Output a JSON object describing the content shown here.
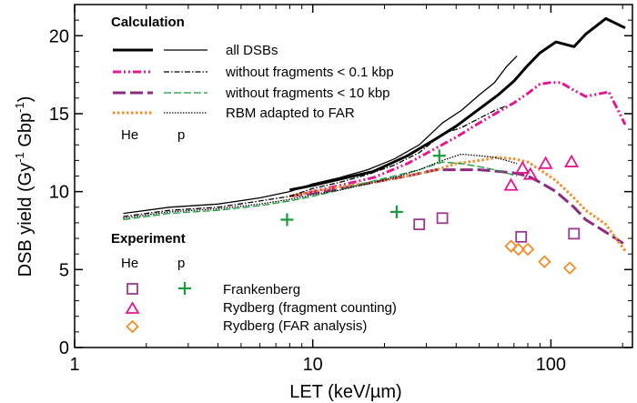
{
  "chart_data": {
    "type": "line",
    "xscale": "log",
    "xlim": [
      1,
      220
    ],
    "ylim": [
      0,
      22
    ],
    "xlabel": "LET (keV/µm)",
    "ylabel_parts": [
      "DSB yield (Gy",
      "-1",
      " Gbp",
      "-1",
      ")"
    ],
    "x_ticks": [
      1,
      10,
      100
    ],
    "x_tick_labels": [
      "1",
      "10",
      "100"
    ],
    "y_ticks": [
      0,
      5,
      10,
      15,
      20
    ],
    "y_tick_labels": [
      "0",
      "5",
      "10",
      "15",
      "20"
    ],
    "legend": {
      "calculation_title": "Calculation",
      "experiment_title": "Experiment",
      "col_he": "He",
      "col_p": "p",
      "calc_entries": [
        "all DSBs",
        "without fragments < 0.1 kbp",
        "without fragments < 10  kbp",
        "RBM adapted to FAR"
      ],
      "exp_entries": [
        "Frankenberg",
        "Rydberg (fragment counting)",
        "Rydberg (FAR analysis)"
      ]
    },
    "series": [
      {
        "particle": "He",
        "group": "all DSBs",
        "color": "#000000",
        "x": [
          8,
          10,
          13,
          18,
          25,
          33,
          40,
          50,
          60,
          70,
          80,
          90,
          105,
          125,
          140,
          170,
          205
        ],
        "y": [
          10.1,
          10.4,
          10.8,
          11.3,
          12.3,
          13.4,
          14.2,
          15.3,
          16.2,
          17.1,
          18.1,
          18.9,
          19.6,
          19.3,
          20.1,
          21.1,
          20.5
        ]
      },
      {
        "particle": "He",
        "group": "without fragments < 0.1 kbp",
        "color": "#e0198f",
        "x": [
          8,
          10,
          13,
          18,
          25,
          33,
          40,
          50,
          60,
          70,
          80,
          90,
          100,
          110,
          125,
          140,
          175,
          205
        ],
        "y": [
          9.7,
          10.0,
          10.4,
          10.9,
          11.8,
          12.8,
          13.5,
          14.4,
          15.1,
          15.7,
          16.3,
          16.9,
          17.0,
          17.0,
          16.5,
          16.1,
          16.4,
          14.3
        ]
      },
      {
        "particle": "He",
        "group": "without fragments < 10 kbp",
        "color": "#8b2a7f",
        "x": [
          8,
          10,
          13,
          18,
          25,
          33,
          40,
          50,
          60,
          70,
          80,
          90,
          105,
          125,
          140,
          170,
          205
        ],
        "y": [
          9.7,
          9.9,
          10.2,
          10.6,
          11.0,
          11.4,
          11.4,
          11.4,
          11.3,
          11.2,
          11.0,
          10.6,
          10.0,
          9.0,
          8.2,
          7.4,
          6.6
        ]
      },
      {
        "particle": "He",
        "group": "RBM adapted to FAR",
        "color": "#f28c28",
        "x": [
          8,
          10,
          13,
          18,
          25,
          33,
          40,
          50,
          60,
          70,
          80,
          90,
          105,
          125,
          140,
          170,
          205
        ],
        "y": [
          9.7,
          10.0,
          10.3,
          10.6,
          11.0,
          11.4,
          11.8,
          12.0,
          12.2,
          12.1,
          11.9,
          11.4,
          10.7,
          9.6,
          8.8,
          7.9,
          6.2
        ]
      },
      {
        "particle": "p",
        "group": "all DSBs",
        "color": "#000000",
        "x": [
          1.6,
          2.5,
          4,
          6,
          8,
          10,
          13,
          17,
          22,
          28,
          35,
          42,
          50,
          58,
          65,
          72
        ],
        "y": [
          8.6,
          9.0,
          9.2,
          9.6,
          10.0,
          10.5,
          10.9,
          11.4,
          12.1,
          13.0,
          14.4,
          15.2,
          16.2,
          17.0,
          18.0,
          18.7
        ]
      },
      {
        "particle": "p",
        "group": "without fragments < 0.1 kbp",
        "color": "#000000",
        "x": [
          1.6,
          2.5,
          4,
          6,
          8,
          10,
          13,
          17,
          22,
          28,
          35,
          42,
          50,
          58,
          65
        ],
        "y": [
          8.4,
          8.8,
          9.0,
          9.4,
          9.7,
          10.2,
          10.6,
          11.1,
          11.7,
          12.5,
          13.7,
          14.1,
          14.7,
          15.2,
          15.5
        ]
      },
      {
        "particle": "p",
        "group": "without fragments < 10 kbp",
        "color": "#1a9a3c",
        "x": [
          1.6,
          2.5,
          4,
          6,
          8,
          10,
          13,
          17,
          22,
          28,
          35,
          42,
          50,
          58,
          65,
          72
        ],
        "y": [
          8.2,
          8.6,
          8.8,
          9.1,
          9.4,
          9.7,
          10.1,
          10.6,
          11.0,
          11.4,
          11.9,
          11.8,
          11.6,
          11.4,
          11.2,
          11.0
        ]
      },
      {
        "particle": "p",
        "group": "RBM adapted to FAR",
        "color": "#000000",
        "x": [
          1.6,
          2.5,
          4,
          6,
          8,
          10,
          13,
          17,
          22,
          28,
          35,
          42,
          50,
          58,
          65,
          72
        ],
        "y": [
          8.3,
          8.7,
          8.9,
          9.2,
          9.5,
          9.8,
          10.1,
          10.5,
          10.9,
          11.4,
          12.0,
          12.4,
          12.3,
          12.2,
          12.0,
          11.8
        ]
      }
    ],
    "experiments": [
      {
        "source": "Frankenberg",
        "particle": "He",
        "marker": "square",
        "color": "#9b3a8e",
        "x": [
          28,
          35,
          75,
          125
        ],
        "y": [
          7.9,
          8.3,
          7.1,
          7.3
        ]
      },
      {
        "source": "Frankenberg",
        "particle": "p",
        "marker": "plus",
        "color": "#1a9a3c",
        "x": [
          7.8,
          22.5,
          34
        ],
        "y": [
          8.2,
          8.7,
          12.3
        ]
      },
      {
        "source": "Rydberg (fragment counting)",
        "particle": "He",
        "marker": "triangle",
        "color": "#e0198f",
        "x": [
          68,
          76,
          82,
          95,
          122
        ],
        "y": [
          10.4,
          11.5,
          11.1,
          11.8,
          11.9
        ]
      },
      {
        "source": "Rydberg (FAR analysis)",
        "particle": "He",
        "marker": "diamond",
        "color": "#f28c28",
        "x": [
          68,
          73,
          80,
          94,
          120
        ],
        "y": [
          6.5,
          6.3,
          6.3,
          5.5,
          5.1
        ]
      }
    ]
  }
}
